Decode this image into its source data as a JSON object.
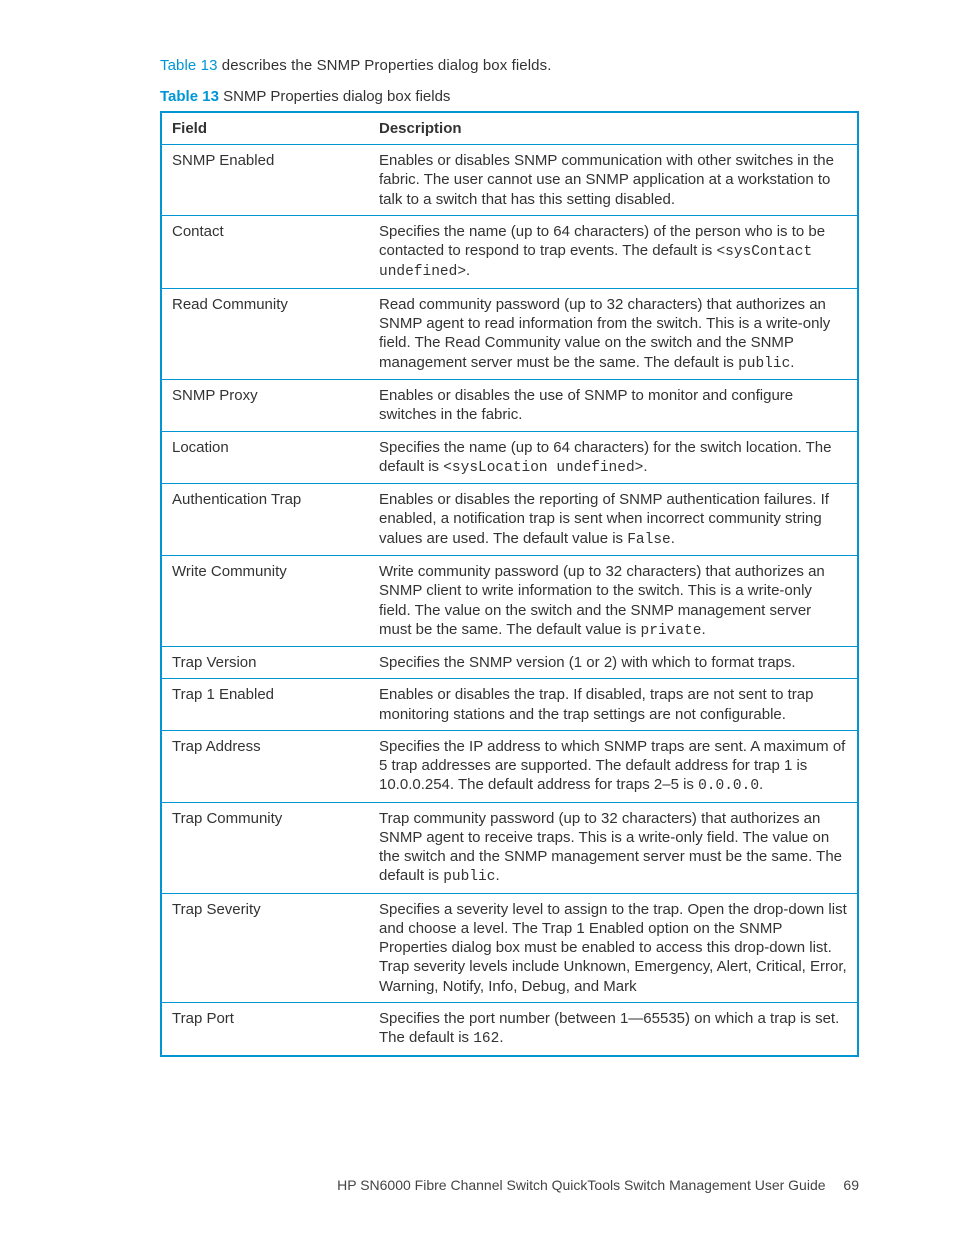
{
  "intro": {
    "link": "Table 13",
    "rest": " describes the SNMP Properties dialog box fields."
  },
  "caption": {
    "label": "Table 13",
    "rest": "   SNMP Properties dialog box fields"
  },
  "table": {
    "header": {
      "field": "Field",
      "desc": "Description"
    },
    "rows": [
      {
        "field": "SNMP Enabled",
        "desc": "Enables or disables SNMP communication with other switches in the fabric. The user cannot use an SNMP application at a workstation to talk to a switch that has this setting disabled."
      },
      {
        "field": "Contact",
        "desc_pre": "Specifies the name (up to 64 characters) of the person who is to be contacted to respond to trap events. The default is ",
        "code": "<sysContact undefined>",
        "desc_post": "."
      },
      {
        "field": "Read Community",
        "desc_pre": "Read community password (up to 32 characters) that authorizes an SNMP agent to read information from the switch. This is a write-only field. The Read Community value on the switch and the SNMP management server must be the same. The default is ",
        "code": "public",
        "desc_post": "."
      },
      {
        "field": "SNMP Proxy",
        "desc": "Enables or disables the use of SNMP to monitor and configure switches in the fabric."
      },
      {
        "field": "Location",
        "desc_pre": "Specifies the name (up to 64 characters) for the switch location. The default is ",
        "code": "<sysLocation undefined>",
        "desc_post": "."
      },
      {
        "field": "Authentication Trap",
        "desc_pre": "Enables or disables the reporting of SNMP authentication failures. If enabled, a notification trap is sent when incorrect community string values are used. The default value is ",
        "code": "False",
        "desc_post": "."
      },
      {
        "field": "Write Community",
        "desc_pre": "Write community password (up to 32 characters) that authorizes an SNMP client to write information to the switch. This is a write-only field. The value on the switch and the SNMP management server must be the same. The default value is ",
        "code": "private",
        "desc_post": "."
      },
      {
        "field": "Trap Version",
        "desc": "Specifies the SNMP version (1 or 2) with which to format traps."
      },
      {
        "field": "Trap 1 Enabled",
        "desc": "Enables or disables the trap. If disabled, traps are not sent to trap monitoring stations and the trap settings are not configurable."
      },
      {
        "field": "Trap Address",
        "desc_pre": "Specifies the IP address to which SNMP traps are sent. A maximum of 5 trap addresses are supported. The default address for trap 1 is 10.0.0.254. The default address for traps 2–5 is ",
        "code": "0.0.0.0",
        "desc_post": "."
      },
      {
        "field": "Trap Community",
        "desc_pre": "Trap community password (up to 32 characters) that authorizes an SNMP agent to receive traps. This is a write-only field. The value on the switch and the SNMP management server must be the same. The default is ",
        "code": "public",
        "desc_post": "."
      },
      {
        "field": "Trap Severity",
        "desc": "Specifies a severity level to assign to the trap. Open the drop-down list and choose a level. The Trap 1 Enabled option on the SNMP Properties dialog box must be enabled to access this drop-down list. Trap severity levels include Unknown, Emergency, Alert, Critical, Error, Warning, Notify, Info, Debug, and Mark"
      },
      {
        "field": "Trap Port",
        "desc_pre": "Specifies the port number (between 1—65535) on which a trap is set. The default is ",
        "code": "162",
        "desc_post": "."
      }
    ]
  },
  "footer": {
    "title": "HP SN6000 Fibre Channel Switch QuickTools Switch Management User Guide",
    "page": "69"
  },
  "style": {
    "accent": "#0096d6",
    "text": "#333333",
    "mono_family": "Courier New"
  }
}
